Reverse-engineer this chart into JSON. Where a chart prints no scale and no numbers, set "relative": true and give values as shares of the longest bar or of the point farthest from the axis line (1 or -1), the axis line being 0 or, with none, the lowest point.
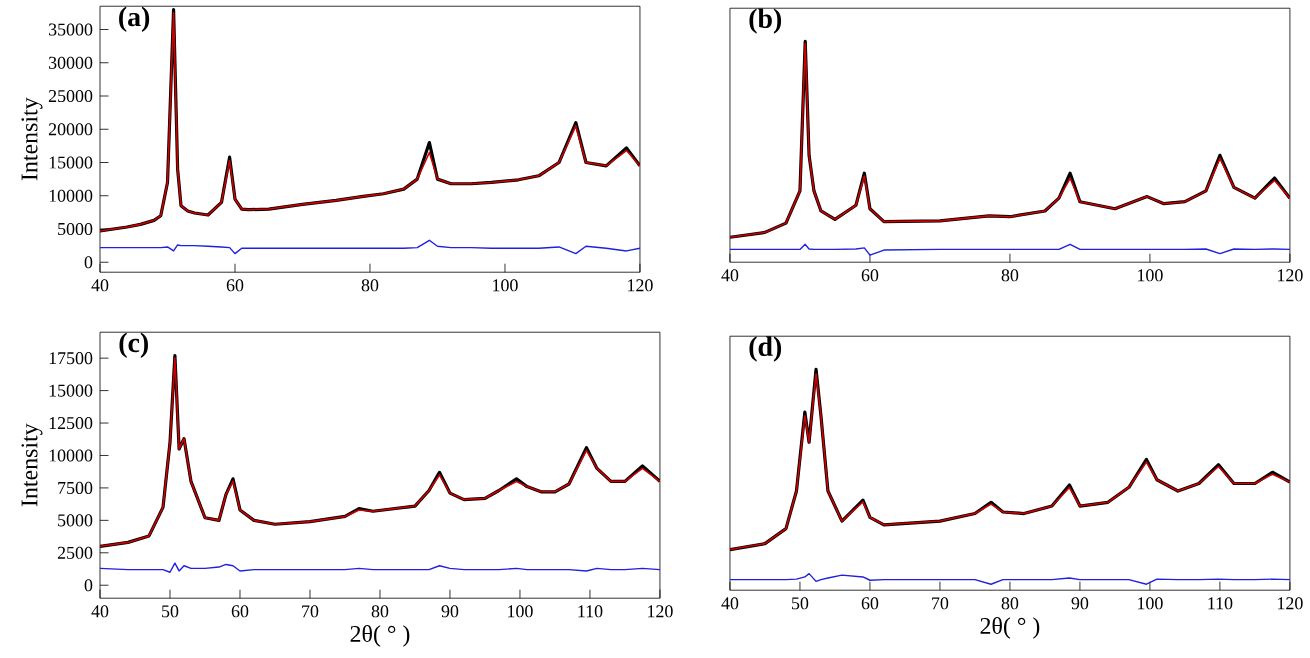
{
  "chart_data": [
    {
      "type": "line",
      "title": "(a)",
      "ylabel": "Intensity",
      "xlim": [
        40,
        120
      ],
      "ylim": [
        -1500,
        38500
      ],
      "xticks": [
        40,
        60,
        80,
        100,
        120
      ],
      "yticks": [
        0,
        5000,
        10000,
        15000,
        20000,
        25000,
        30000,
        35000
      ],
      "x": [
        40,
        42,
        44,
        46,
        48,
        49,
        50,
        50.9,
        51.5,
        52,
        53,
        54,
        56,
        58,
        59.2,
        60,
        61,
        62,
        65,
        70,
        75,
        79,
        82,
        85,
        87,
        88.8,
        90,
        92,
        95,
        98,
        100,
        102,
        105,
        108,
        110.5,
        112,
        115,
        118,
        120
      ],
      "series": [
        {
          "color": "#000000",
          "values": [
            4700,
            5000,
            5300,
            5700,
            6300,
            7000,
            12000,
            38000,
            14000,
            8500,
            7700,
            7400,
            7100,
            9000,
            15800,
            9500,
            8000,
            7900,
            8000,
            8700,
            9300,
            9900,
            10300,
            11000,
            12500,
            18000,
            12500,
            11800,
            11800,
            12000,
            12200,
            12400,
            13000,
            15000,
            21000,
            15000,
            14500,
            17200,
            14500
          ]
        },
        {
          "color": "#cc0000",
          "values": [
            4700,
            5000,
            5300,
            5700,
            6300,
            7000,
            12000,
            37500,
            14000,
            8500,
            7700,
            7400,
            7100,
            9000,
            15300,
            9500,
            8000,
            7900,
            8000,
            8700,
            9300,
            9900,
            10300,
            11000,
            12500,
            16500,
            12500,
            11800,
            11800,
            12000,
            12200,
            12400,
            13000,
            15000,
            20500,
            15000,
            14500,
            16800,
            14500
          ]
        },
        {
          "color": "#2020e0",
          "values": [
            2200,
            2200,
            2200,
            2200,
            2200,
            2200,
            2300,
            1700,
            2600,
            2500,
            2500,
            2500,
            2400,
            2300,
            2200,
            1300,
            2100,
            2100,
            2100,
            2100,
            2100,
            2100,
            2100,
            2100,
            2200,
            3300,
            2400,
            2200,
            2200,
            2100,
            2100,
            2100,
            2100,
            2300,
            1300,
            2400,
            2100,
            1700,
            2100
          ]
        }
      ]
    },
    {
      "type": "line",
      "title": "(b)",
      "relative": true,
      "xlim": [
        40,
        120
      ],
      "xticks": [
        40,
        60,
        80,
        100,
        120
      ],
      "x": [
        40,
        45,
        48,
        50,
        50.75,
        51.3,
        52,
        53,
        55,
        58,
        59.2,
        60,
        62,
        70,
        77,
        80,
        85,
        87,
        88.6,
        90,
        95,
        99.6,
        102,
        105,
        108,
        110,
        112,
        115,
        117.8,
        120
      ],
      "series": [
        {
          "color": "#000000",
          "values": [
            0.113,
            0.135,
            0.177,
            0.323,
            1,
            0.484,
            0.323,
            0.232,
            0.194,
            0.258,
            0.403,
            0.242,
            0.184,
            0.187,
            0.21,
            0.206,
            0.232,
            0.29,
            0.403,
            0.274,
            0.242,
            0.297,
            0.265,
            0.274,
            0.323,
            0.484,
            0.339,
            0.29,
            0.381,
            0.29
          ]
        },
        {
          "color": "#cc0000",
          "values": [
            0.113,
            0.135,
            0.177,
            0.323,
            0.99,
            0.484,
            0.323,
            0.232,
            0.194,
            0.258,
            0.39,
            0.242,
            0.184,
            0.187,
            0.21,
            0.206,
            0.232,
            0.29,
            0.38,
            0.274,
            0.242,
            0.297,
            0.265,
            0.274,
            0.323,
            0.47,
            0.339,
            0.29,
            0.37,
            0.29
          ]
        },
        {
          "color": "#2020e0",
          "values": [
            0.058,
            0.058,
            0.058,
            0.058,
            0.081,
            0.06,
            0.058,
            0.058,
            0.058,
            0.06,
            0.065,
            0.032,
            0.055,
            0.058,
            0.058,
            0.058,
            0.058,
            0.058,
            0.081,
            0.058,
            0.058,
            0.058,
            0.058,
            0.058,
            0.06,
            0.039,
            0.06,
            0.058,
            0.06,
            0.058
          ]
        }
      ]
    },
    {
      "type": "line",
      "title": "(c)",
      "xlabel": "2θ( ° )",
      "ylabel": "Intensity",
      "xlim": [
        40,
        120
      ],
      "ylim": [
        -1000,
        19500
      ],
      "xticks": [
        40,
        50,
        60,
        70,
        80,
        90,
        100,
        110,
        120
      ],
      "yticks": [
        0,
        2500,
        5000,
        7500,
        10000,
        12500,
        15000,
        17500
      ],
      "x": [
        40,
        44,
        47,
        49,
        50,
        50.7,
        51.3,
        52,
        53,
        55,
        57,
        58,
        59,
        60,
        62,
        65,
        70,
        75,
        77,
        79,
        85,
        87,
        88.5,
        90,
        92,
        95,
        97,
        99.5,
        101,
        103,
        105,
        107,
        109.5,
        111,
        113,
        115,
        117.5,
        120
      ],
      "series": [
        {
          "color": "#000000",
          "values": [
            3000,
            3300,
            3800,
            6000,
            11000,
            17700,
            10500,
            11300,
            8000,
            5200,
            5000,
            7000,
            8200,
            5800,
            5000,
            4700,
            4900,
            5300,
            5900,
            5700,
            6100,
            7300,
            8700,
            7100,
            6600,
            6700,
            7300,
            8200,
            7600,
            7200,
            7200,
            7800,
            10600,
            9000,
            8000,
            8000,
            9200,
            8000
          ]
        },
        {
          "color": "#cc0000",
          "values": [
            3000,
            3300,
            3800,
            6000,
            11000,
            17500,
            10500,
            11300,
            8000,
            5200,
            5000,
            7000,
            8000,
            5800,
            5000,
            4700,
            4900,
            5300,
            5800,
            5700,
            6100,
            7300,
            8500,
            7100,
            6600,
            6700,
            7300,
            8000,
            7600,
            7200,
            7200,
            7800,
            10400,
            9000,
            8000,
            8000,
            9000,
            8000
          ]
        },
        {
          "color": "#2020e0",
          "values": [
            1300,
            1200,
            1200,
            1200,
            1000,
            1700,
            1100,
            1500,
            1300,
            1300,
            1400,
            1600,
            1500,
            1100,
            1200,
            1200,
            1200,
            1200,
            1300,
            1200,
            1200,
            1200,
            1500,
            1300,
            1200,
            1200,
            1200,
            1300,
            1200,
            1200,
            1200,
            1200,
            1100,
            1300,
            1200,
            1200,
            1300,
            1200
          ]
        }
      ]
    },
    {
      "type": "line",
      "title": "(d)",
      "xlabel": "2θ( ° )",
      "relative": true,
      "xlim": [
        40,
        120
      ],
      "xticks": [
        40,
        50,
        60,
        70,
        80,
        90,
        100,
        110,
        120
      ],
      "x": [
        40,
        45,
        48,
        49.5,
        50.7,
        51.3,
        52.3,
        53,
        54,
        56,
        59,
        60,
        62,
        70,
        75,
        77.3,
        79,
        82,
        86,
        88.5,
        90,
        94,
        97,
        99.5,
        101,
        104,
        107,
        109.8,
        112,
        115,
        117.5,
        120
      ],
      "series": [
        {
          "color": "#000000",
          "values": [
            0.184,
            0.211,
            0.279,
            0.449,
            0.806,
            0.67,
            1,
            0.789,
            0.449,
            0.313,
            0.408,
            0.33,
            0.296,
            0.313,
            0.347,
            0.398,
            0.354,
            0.347,
            0.381,
            0.476,
            0.381,
            0.398,
            0.466,
            0.592,
            0.5,
            0.449,
            0.483,
            0.568,
            0.483,
            0.483,
            0.534,
            0.49
          ]
        },
        {
          "color": "#cc0000",
          "values": [
            0.184,
            0.211,
            0.279,
            0.449,
            0.79,
            0.67,
            0.98,
            0.789,
            0.449,
            0.313,
            0.4,
            0.33,
            0.296,
            0.313,
            0.347,
            0.39,
            0.354,
            0.347,
            0.381,
            0.465,
            0.381,
            0.398,
            0.466,
            0.58,
            0.5,
            0.449,
            0.483,
            0.56,
            0.483,
            0.483,
            0.525,
            0.49
          ]
        },
        {
          "color": "#2020e0",
          "values": [
            0.048,
            0.048,
            0.048,
            0.05,
            0.06,
            0.075,
            0.04,
            0.048,
            0.055,
            0.068,
            0.06,
            0.045,
            0.048,
            0.048,
            0.048,
            0.027,
            0.048,
            0.048,
            0.048,
            0.055,
            0.048,
            0.048,
            0.048,
            0.027,
            0.05,
            0.048,
            0.048,
            0.05,
            0.048,
            0.048,
            0.05,
            0.048
          ]
        }
      ]
    }
  ]
}
